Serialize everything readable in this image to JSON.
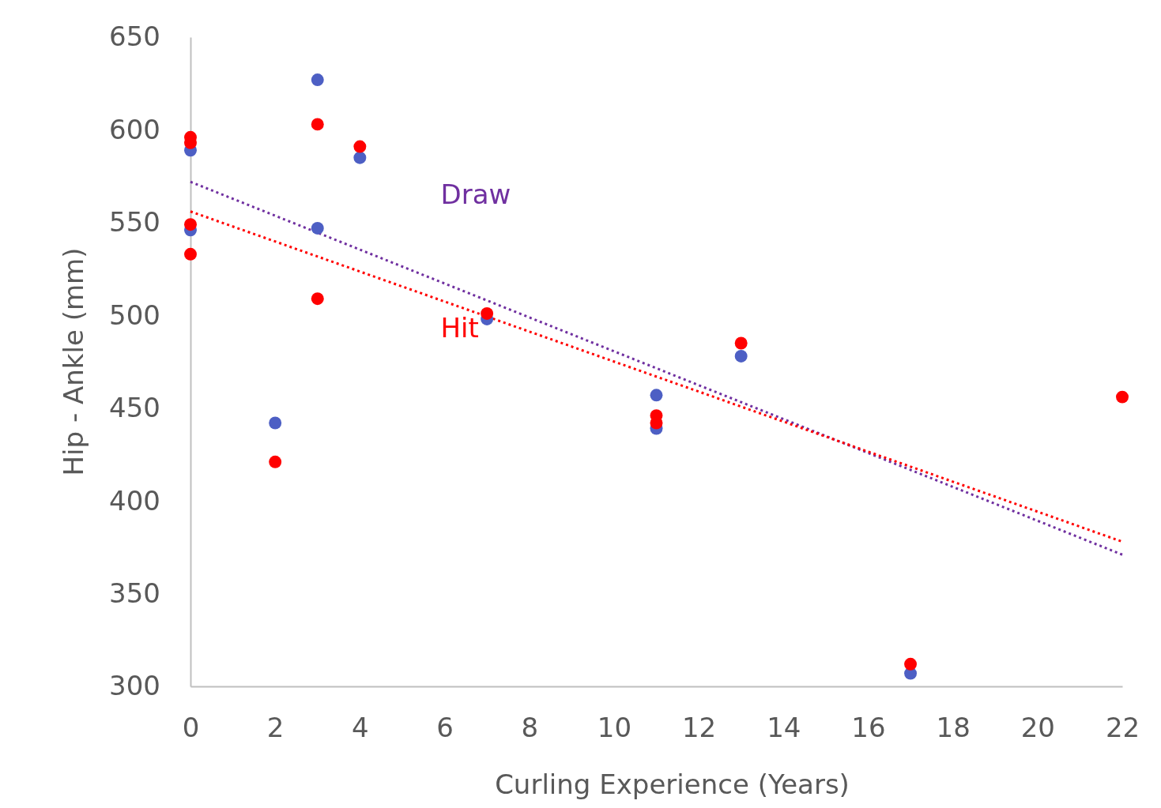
{
  "chart_data": {
    "type": "scatter",
    "xlabel": "Curling Experience (Years)",
    "ylabel": "Hip - Ankle (mm)",
    "xlim": [
      0,
      22
    ],
    "xticks": [
      0,
      2,
      4,
      6,
      8,
      10,
      12,
      14,
      16,
      18,
      20,
      22
    ],
    "ylim": [
      300,
      650
    ],
    "yticks": [
      300,
      350,
      400,
      450,
      500,
      550,
      600,
      650
    ],
    "grid": false,
    "legend": false,
    "marker": "circle",
    "series": [
      {
        "type": "scatter",
        "color": "#4d5fc4",
        "x": [
          0,
          0,
          2,
          3,
          3,
          4,
          7,
          11,
          11,
          13,
          17
        ],
        "values": [
          589,
          546,
          442,
          627,
          547,
          585,
          498,
          457,
          439,
          478,
          307
        ]
      },
      {
        "type": "scatter",
        "color": "#ff0000",
        "x": [
          0,
          0,
          0,
          0,
          2,
          3,
          3,
          4,
          7,
          11,
          11,
          13,
          17,
          22
        ],
        "values": [
          596,
          593,
          549,
          533,
          421,
          603,
          509,
          591,
          501,
          446,
          442,
          485,
          312,
          456
        ]
      },
      {
        "type": "line",
        "name": "Draw",
        "color": "#7030a0",
        "line_style": "dotted",
        "marker": "none",
        "x": [
          0,
          22
        ],
        "values": [
          572,
          371
        ]
      },
      {
        "type": "line",
        "name": "Hit",
        "color": "#ff0000",
        "line_style": "dotted",
        "marker": "none",
        "x": [
          0,
          22
        ],
        "values": [
          556,
          378
        ]
      }
    ]
  }
}
